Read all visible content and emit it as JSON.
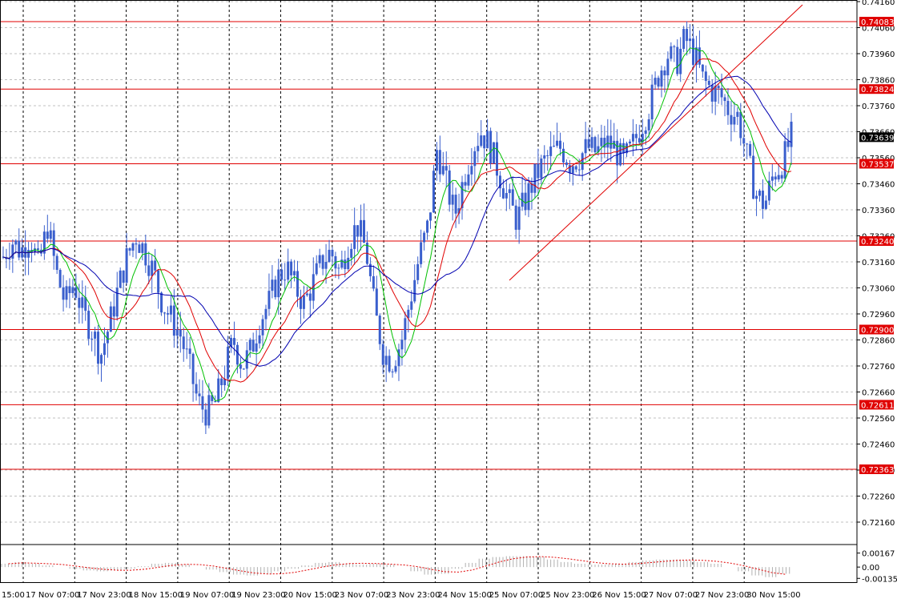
{
  "chart_data": {
    "type": "candlestick",
    "instrument_color": "#3a5fcd",
    "colors": {
      "background": "#ffffff",
      "grid": "#c0c0c0",
      "vertical_grid": "#000000",
      "level_line": "#e00000",
      "level_label_bg": "#e00000",
      "level_label_text": "#ffffff",
      "price_label_bg": "#000000",
      "price_label_text": "#ffffff",
      "ma_fast": "#00c000",
      "ma_mid": "#e00000",
      "ma_slow": "#0000b0",
      "candles": "#3a5fcd",
      "trendline": "#e00000",
      "osc_bars": "#b0b0b0",
      "osc_signal": "#e00000"
    },
    "y_axis": {
      "ylim": [
        0.7208,
        0.7416
      ],
      "ticks": [
        "0.74160",
        "0.74060",
        "0.73960",
        "0.73860",
        "0.73760",
        "0.73660",
        "0.73560",
        "0.73460",
        "0.73360",
        "0.73260",
        "0.73160",
        "0.73060",
        "0.72960",
        "0.72860",
        "0.72760",
        "0.72660",
        "0.72560",
        "0.72460",
        "0.72360",
        "0.72260",
        "0.72160"
      ]
    },
    "x_axis": {
      "tick_labels": [
        "17 Nov 07:00",
        "17 Nov 23:00",
        "18 Nov 15:00",
        "19 Nov 07:00",
        "19 Nov 23:00",
        "20 Nov 15:00",
        "23 Nov 07:00",
        "23 Nov 23:00",
        "24 Nov 15:00",
        "25 Nov 07:00",
        "25 Nov 23:00",
        "26 Nov 15:00",
        "27 Nov 07:00",
        "27 Nov 23:00",
        "30 Nov 15:00"
      ],
      "first_label": "15:00"
    },
    "levels": [
      "0.74083",
      "0.73824",
      "0.73537",
      "0.73240",
      "0.72900",
      "0.72611",
      "0.72363"
    ],
    "current_price": "0.73639",
    "close_series": [
      0.7318,
      0.7324,
      0.732,
      0.7326,
      0.7314,
      0.733,
      0.7312,
      0.73,
      0.7308,
      0.7296,
      0.729,
      0.728,
      0.7292,
      0.7306,
      0.7318,
      0.7326,
      0.732,
      0.7312,
      0.73,
      0.7294,
      0.7288,
      0.7276,
      0.7262,
      0.7258,
      0.7262,
      0.7274,
      0.7286,
      0.7276,
      0.7282,
      0.7294,
      0.73,
      0.731,
      0.7314,
      0.7306,
      0.73,
      0.7308,
      0.7316,
      0.732,
      0.7312,
      0.7324,
      0.733,
      0.732,
      0.7296,
      0.728,
      0.7278,
      0.7286,
      0.7302,
      0.7318,
      0.733,
      0.736,
      0.7346,
      0.7334,
      0.7348,
      0.736,
      0.7366,
      0.736,
      0.735,
      0.734,
      0.7332,
      0.734,
      0.7348,
      0.7354,
      0.7358,
      0.736,
      0.7354,
      0.7356,
      0.736,
      0.7358,
      0.7362,
      0.736,
      0.7354,
      0.736,
      0.7368,
      0.7376,
      0.7388,
      0.7396,
      0.7392,
      0.7402,
      0.7396,
      0.7386,
      0.7382,
      0.738,
      0.7374,
      0.7372,
      0.7356,
      0.7342,
      0.7338,
      0.735,
      0.7354,
      0.7364
    ],
    "oscillator": {
      "ticks": [
        "0.00167",
        "0.00",
        "-0.001351"
      ],
      "ylim": [
        -0.0019,
        0.0025
      ],
      "values": [
        0.0004,
        0.0006,
        0.0004,
        0.0002,
        0.0,
        -0.0002,
        -0.0004,
        -0.0005,
        -0.0004,
        -0.0002,
        0.0001,
        0.0004,
        0.0005,
        0.0003,
        0.0,
        -0.0003,
        -0.0006,
        -0.0009,
        -0.001,
        -0.0008,
        -0.0005,
        -0.0002,
        0.0002,
        0.0005,
        0.0006,
        0.0004,
        0.0003,
        0.0004,
        0.0003,
        0.0,
        -0.0005,
        -0.0009,
        -0.0008,
        -0.0002,
        0.0005,
        0.001,
        0.0012,
        0.0013,
        0.0013,
        0.0012,
        0.0009,
        0.0006,
        0.0004,
        0.0003,
        0.0003,
        0.0004,
        0.0006,
        0.0008,
        0.0009,
        0.0009,
        0.0008,
        0.0006,
        0.0004,
        0.0,
        -0.0005,
        -0.001,
        -0.0012,
        -0.0008
      ]
    }
  }
}
